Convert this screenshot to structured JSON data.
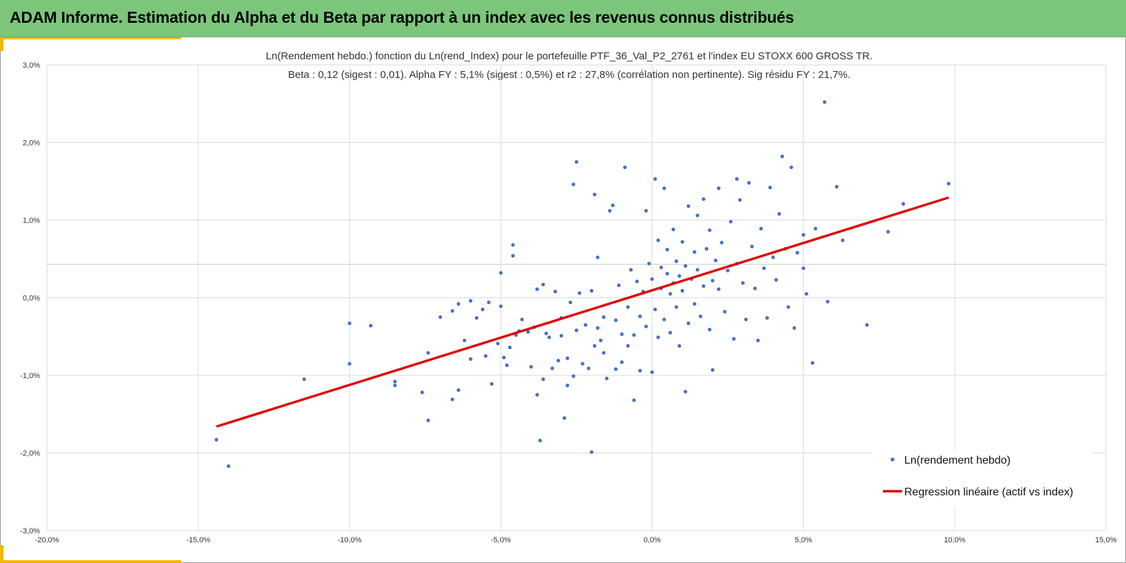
{
  "header": {
    "title": "ADAM Informe. Estimation du Alpha et du Beta par rapport à un index avec les revenus connus distribués"
  },
  "colors": {
    "header_bg": "#7cc67c",
    "accent_gold": "#f2b705",
    "points": "#4472c4",
    "regression": "#e00000",
    "grid": "#d9d9d9"
  },
  "chart_data": {
    "type": "scatter",
    "title": "Ln(Rendement hebdo.) fonction du Ln(rend_Index) pour le portefeuille PTF_36_Val_P2_2761 et l'index EU STOXX 600 GROSS TR.",
    "subtitle": "Beta : 0,12 (sigest : 0,01).  Alpha FY : 5,1% (sigest : 0,5%) et r2 : 27,8% (corrélation non pertinente). Sig résidu FY : 21,7%.",
    "xlabel": "",
    "ylabel": "",
    "xlim": [
      -0.2,
      0.15
    ],
    "ylim": [
      -0.03,
      0.03
    ],
    "x_ticks": [
      "-20,0%",
      "-15,0%",
      "-10,0%",
      "-5,0%",
      "0,0%",
      "5,0%",
      "10,0%",
      "15,0%"
    ],
    "y_ticks": [
      "3,0%",
      "2,0%",
      "1,0%",
      "0,0%",
      "-1,0%",
      "-2,0%",
      "-3,0%"
    ],
    "grid": true,
    "legend_position": "bottom-right",
    "series": [
      {
        "name": "Ln(rendement hebdo)",
        "type": "scatter",
        "points": [
          [
            -0.144,
            -0.0183
          ],
          [
            -0.14,
            -0.0217
          ],
          [
            -0.115,
            -0.0105
          ],
          [
            -0.1,
            -0.0033
          ],
          [
            -0.1,
            -0.0085
          ],
          [
            -0.093,
            -0.0036
          ],
          [
            -0.085,
            -0.0113
          ],
          [
            -0.085,
            -0.0108
          ],
          [
            -0.076,
            -0.0122
          ],
          [
            -0.074,
            -0.0158
          ],
          [
            -0.074,
            -0.0071
          ],
          [
            -0.07,
            -0.0025
          ],
          [
            -0.066,
            -0.0131
          ],
          [
            -0.066,
            -0.0017
          ],
          [
            -0.064,
            -0.0119
          ],
          [
            -0.064,
            -0.0008
          ],
          [
            -0.062,
            -0.0055
          ],
          [
            -0.06,
            -0.0004
          ],
          [
            -0.06,
            -0.0079
          ],
          [
            -0.058,
            -0.0026
          ],
          [
            -0.056,
            -0.0015
          ],
          [
            -0.055,
            -0.0075
          ],
          [
            -0.054,
            -0.0006
          ],
          [
            -0.053,
            -0.0111
          ],
          [
            -0.051,
            -0.0059
          ],
          [
            -0.05,
            0.0032
          ],
          [
            -0.05,
            -0.0011
          ],
          [
            -0.049,
            -0.0077
          ],
          [
            -0.048,
            -0.0087
          ],
          [
            -0.047,
            -0.0064
          ],
          [
            -0.046,
            0.0054
          ],
          [
            -0.046,
            0.0068
          ],
          [
            -0.045,
            -0.0048
          ],
          [
            -0.044,
            -0.0043
          ],
          [
            -0.043,
            -0.0028
          ],
          [
            -0.041,
            -0.0044
          ],
          [
            -0.04,
            -0.0089
          ],
          [
            -0.039,
            -0.0038
          ],
          [
            -0.038,
            0.0011
          ],
          [
            -0.038,
            -0.0125
          ],
          [
            -0.037,
            -0.0184
          ],
          [
            -0.036,
            -0.0105
          ],
          [
            -0.036,
            0.0017
          ],
          [
            -0.035,
            -0.0046
          ],
          [
            -0.034,
            -0.0051
          ],
          [
            -0.033,
            -0.0091
          ],
          [
            -0.032,
            0.0008
          ],
          [
            -0.031,
            -0.0081
          ],
          [
            -0.03,
            -0.0026
          ],
          [
            -0.03,
            -0.0049
          ],
          [
            -0.029,
            -0.0155
          ],
          [
            -0.028,
            -0.0078
          ],
          [
            -0.028,
            -0.0113
          ],
          [
            -0.027,
            -0.0006
          ],
          [
            -0.026,
            -0.0101
          ],
          [
            -0.026,
            0.0146
          ],
          [
            -0.025,
            0.0175
          ],
          [
            -0.025,
            -0.0042
          ],
          [
            -0.024,
            0.0006
          ],
          [
            -0.023,
            -0.0085
          ],
          [
            -0.022,
            -0.0035
          ],
          [
            -0.021,
            -0.0091
          ],
          [
            -0.02,
            -0.0199
          ],
          [
            -0.02,
            0.0009
          ],
          [
            -0.019,
            0.0133
          ],
          [
            -0.019,
            -0.0062
          ],
          [
            -0.018,
            -0.0039
          ],
          [
            -0.018,
            0.0052
          ],
          [
            -0.017,
            -0.0055
          ],
          [
            -0.016,
            -0.0071
          ],
          [
            -0.016,
            -0.0025
          ],
          [
            -0.015,
            -0.0104
          ],
          [
            -0.014,
            0.0112
          ],
          [
            -0.013,
            0.0119
          ],
          [
            -0.012,
            -0.0029
          ],
          [
            -0.012,
            -0.0092
          ],
          [
            -0.011,
            0.0016
          ],
          [
            -0.01,
            -0.0047
          ],
          [
            -0.01,
            -0.0083
          ],
          [
            -0.009,
            0.0168
          ],
          [
            -0.008,
            -0.0012
          ],
          [
            -0.008,
            -0.0062
          ],
          [
            -0.007,
            0.0036
          ],
          [
            -0.006,
            -0.0048
          ],
          [
            -0.006,
            -0.0132
          ],
          [
            -0.005,
            0.0021
          ],
          [
            -0.004,
            -0.0094
          ],
          [
            -0.004,
            -0.0024
          ],
          [
            -0.003,
            0.0008
          ],
          [
            -0.002,
            0.0112
          ],
          [
            -0.002,
            -0.0037
          ],
          [
            -0.001,
            0.0044
          ],
          [
            0.0,
            -0.0096
          ],
          [
            0.0,
            0.0024
          ],
          [
            0.001,
            -0.0015
          ],
          [
            0.001,
            0.0153
          ],
          [
            0.002,
            0.0074
          ],
          [
            0.002,
            -0.0051
          ],
          [
            0.003,
            0.0039
          ],
          [
            0.003,
            0.0012
          ],
          [
            0.004,
            0.0141
          ],
          [
            0.004,
            -0.0028
          ],
          [
            0.005,
            0.0062
          ],
          [
            0.005,
            0.0031
          ],
          [
            0.006,
            0.0005
          ],
          [
            0.006,
            -0.0045
          ],
          [
            0.007,
            0.0088
          ],
          [
            0.007,
            0.0019
          ],
          [
            0.008,
            -0.0012
          ],
          [
            0.008,
            0.0047
          ],
          [
            0.009,
            0.0028
          ],
          [
            0.009,
            -0.0062
          ],
          [
            0.01,
            0.0072
          ],
          [
            0.01,
            0.0009
          ],
          [
            0.011,
            -0.0121
          ],
          [
            0.011,
            0.0041
          ],
          [
            0.012,
            0.0118
          ],
          [
            0.012,
            -0.0033
          ],
          [
            0.013,
            0.0024
          ],
          [
            0.014,
            0.0059
          ],
          [
            0.014,
            -0.0008
          ],
          [
            0.015,
            0.0036
          ],
          [
            0.015,
            0.0106
          ],
          [
            0.016,
            -0.0024
          ],
          [
            0.017,
            0.0015
          ],
          [
            0.017,
            0.0127
          ],
          [
            0.018,
            0.0063
          ],
          [
            0.019,
            -0.0041
          ],
          [
            0.019,
            0.0087
          ],
          [
            0.02,
            0.0022
          ],
          [
            0.02,
            -0.0093
          ],
          [
            0.021,
            0.0048
          ],
          [
            0.022,
            0.0011
          ],
          [
            0.022,
            0.0141
          ],
          [
            0.023,
            0.0071
          ],
          [
            0.024,
            -0.0018
          ],
          [
            0.025,
            0.0035
          ],
          [
            0.026,
            0.0098
          ],
          [
            0.027,
            -0.0053
          ],
          [
            0.028,
            0.0153
          ],
          [
            0.028,
            0.0044
          ],
          [
            0.029,
            0.0126
          ],
          [
            0.03,
            0.0019
          ],
          [
            0.031,
            -0.0028
          ],
          [
            0.032,
            0.0148
          ],
          [
            0.033,
            0.0066
          ],
          [
            0.034,
            0.0012
          ],
          [
            0.035,
            -0.0055
          ],
          [
            0.036,
            0.0089
          ],
          [
            0.037,
            0.0038
          ],
          [
            0.038,
            -0.0026
          ],
          [
            0.039,
            0.0142
          ],
          [
            0.04,
            0.0052
          ],
          [
            0.041,
            0.0023
          ],
          [
            0.042,
            0.0108
          ],
          [
            0.043,
            0.0182
          ],
          [
            0.044,
            0.0063
          ],
          [
            0.045,
            -0.0012
          ],
          [
            0.046,
            0.0168
          ],
          [
            0.047,
            -0.0039
          ],
          [
            0.048,
            0.0058
          ],
          [
            0.05,
            0.0081
          ],
          [
            0.05,
            0.0038
          ],
          [
            0.051,
            0.0005
          ],
          [
            0.053,
            -0.0084
          ],
          [
            0.054,
            0.0089
          ],
          [
            0.057,
            0.0252
          ],
          [
            0.058,
            -0.0005
          ],
          [
            0.061,
            0.0143
          ],
          [
            0.063,
            0.0074
          ],
          [
            0.071,
            -0.0035
          ],
          [
            0.078,
            0.0085
          ],
          [
            0.083,
            0.0121
          ],
          [
            0.098,
            0.0147
          ]
        ]
      },
      {
        "name": "Regression linéaire (actif vs index)",
        "type": "line",
        "points": [
          [
            -0.144,
            -0.0166
          ],
          [
            0.098,
            0.0129
          ]
        ]
      }
    ]
  }
}
